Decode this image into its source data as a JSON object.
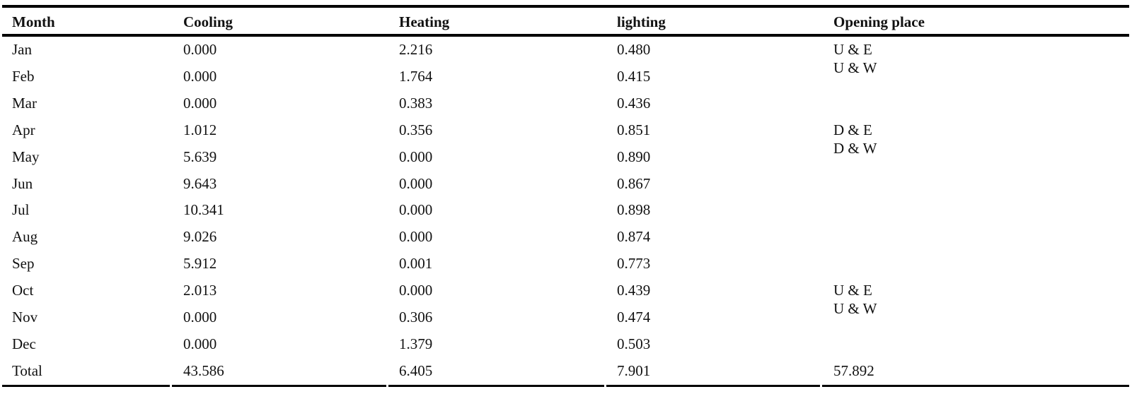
{
  "table": {
    "headers": [
      "Month",
      "Cooling",
      "Heating",
      "lighting",
      "Opening place"
    ],
    "rows": [
      {
        "month": "Jan",
        "cooling": "0.000",
        "heating": "2.216",
        "lighting": "0.480",
        "opening": [
          "U & E",
          "U & W"
        ]
      },
      {
        "month": "Feb",
        "cooling": "0.000",
        "heating": "1.764",
        "lighting": "0.415",
        "opening": []
      },
      {
        "month": "Mar",
        "cooling": "0.000",
        "heating": "0.383",
        "lighting": "0.436",
        "opening": []
      },
      {
        "month": "Apr",
        "cooling": "1.012",
        "heating": "0.356",
        "lighting": "0.851",
        "opening": [
          "D & E",
          "D & W"
        ]
      },
      {
        "month": "May",
        "cooling": "5.639",
        "heating": "0.000",
        "lighting": "0.890",
        "opening": []
      },
      {
        "month": "Jun",
        "cooling": "9.643",
        "heating": "0.000",
        "lighting": "0.867",
        "opening": []
      },
      {
        "month": "Jul",
        "cooling": "10.341",
        "heating": "0.000",
        "lighting": "0.898",
        "opening": []
      },
      {
        "month": "Aug",
        "cooling": "9.026",
        "heating": "0.000",
        "lighting": "0.874",
        "opening": []
      },
      {
        "month": "Sep",
        "cooling": "5.912",
        "heating": "0.001",
        "lighting": "0.773",
        "opening": []
      },
      {
        "month": "Oct",
        "cooling": "2.013",
        "heating": "0.000",
        "lighting": "0.439",
        "opening": [
          "U & E",
          "U & W"
        ]
      },
      {
        "month": "Nov",
        "cooling": "0.000",
        "heating": "0.306",
        "lighting": "0.474",
        "opening": []
      },
      {
        "month": "Dec",
        "cooling": "0.000",
        "heating": "1.379",
        "lighting": "0.503",
        "opening": []
      }
    ],
    "total": {
      "label": "Total",
      "cooling": "43.586",
      "heating": "6.405",
      "lighting": "7.901",
      "opening": "57.892"
    }
  }
}
